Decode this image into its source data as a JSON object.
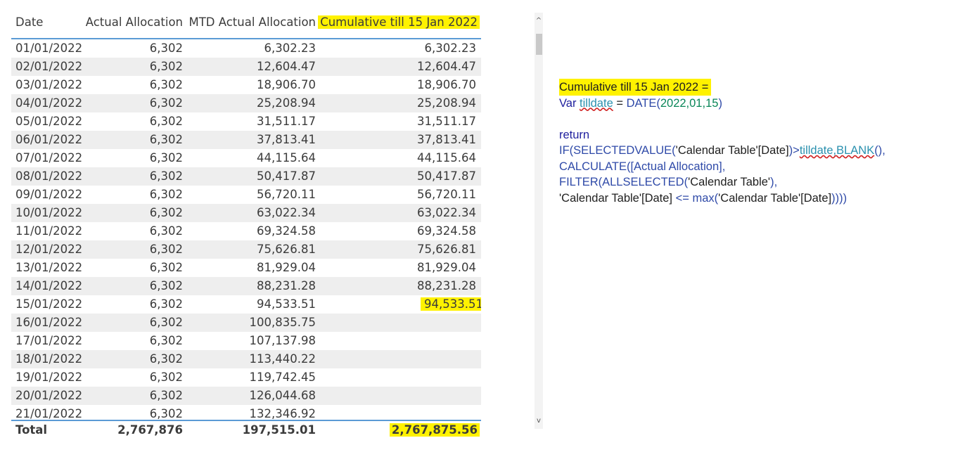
{
  "table": {
    "headers": {
      "date": "Date",
      "actual": "Actual Allocation",
      "mtd": "MTD Actual Allocation",
      "cumulative": "Cumulative till 15 Jan 2022"
    },
    "rows": [
      {
        "date": "01/01/2022",
        "actual": "6,302",
        "mtd": "6,302.23",
        "cumulative": "6,302.23"
      },
      {
        "date": "02/01/2022",
        "actual": "6,302",
        "mtd": "12,604.47",
        "cumulative": "12,604.47"
      },
      {
        "date": "03/01/2022",
        "actual": "6,302",
        "mtd": "18,906.70",
        "cumulative": "18,906.70"
      },
      {
        "date": "04/01/2022",
        "actual": "6,302",
        "mtd": "25,208.94",
        "cumulative": "25,208.94"
      },
      {
        "date": "05/01/2022",
        "actual": "6,302",
        "mtd": "31,511.17",
        "cumulative": "31,511.17"
      },
      {
        "date": "06/01/2022",
        "actual": "6,302",
        "mtd": "37,813.41",
        "cumulative": "37,813.41"
      },
      {
        "date": "07/01/2022",
        "actual": "6,302",
        "mtd": "44,115.64",
        "cumulative": "44,115.64"
      },
      {
        "date": "08/01/2022",
        "actual": "6,302",
        "mtd": "50,417.87",
        "cumulative": "50,417.87"
      },
      {
        "date": "09/01/2022",
        "actual": "6,302",
        "mtd": "56,720.11",
        "cumulative": "56,720.11"
      },
      {
        "date": "10/01/2022",
        "actual": "6,302",
        "mtd": "63,022.34",
        "cumulative": "63,022.34"
      },
      {
        "date": "11/01/2022",
        "actual": "6,302",
        "mtd": "69,324.58",
        "cumulative": "69,324.58"
      },
      {
        "date": "12/01/2022",
        "actual": "6,302",
        "mtd": "75,626.81",
        "cumulative": "75,626.81"
      },
      {
        "date": "13/01/2022",
        "actual": "6,302",
        "mtd": "81,929.04",
        "cumulative": "81,929.04"
      },
      {
        "date": "14/01/2022",
        "actual": "6,302",
        "mtd": "88,231.28",
        "cumulative": "88,231.28"
      },
      {
        "date": "15/01/2022",
        "actual": "6,302",
        "mtd": "94,533.51",
        "cumulative": "94,533.51",
        "highlight": true
      },
      {
        "date": "16/01/2022",
        "actual": "6,302",
        "mtd": "100,835.75",
        "cumulative": ""
      },
      {
        "date": "17/01/2022",
        "actual": "6,302",
        "mtd": "107,137.98",
        "cumulative": ""
      },
      {
        "date": "18/01/2022",
        "actual": "6,302",
        "mtd": "113,440.22",
        "cumulative": ""
      },
      {
        "date": "19/01/2022",
        "actual": "6,302",
        "mtd": "119,742.45",
        "cumulative": ""
      },
      {
        "date": "20/01/2022",
        "actual": "6,302",
        "mtd": "126,044.68",
        "cumulative": ""
      },
      {
        "date": "21/01/2022",
        "actual": "6,302",
        "mtd": "132,346.92",
        "cumulative": ""
      }
    ],
    "total": {
      "label": "Total",
      "actual": "2,767,876",
      "mtd": "197,515.01",
      "cumulative": "2,767,875.56"
    }
  },
  "scrollbar": {
    "up_icon": "chevron-up-icon",
    "down_icon": "chevron-down-icon",
    "up_glyph": "^",
    "down_glyph": "v"
  },
  "dax": {
    "measure_name": "Cumulative till 15 Jan 2022",
    "eq": " =",
    "line2_var": "Var ",
    "line2_name": "tilldate",
    "line2_eq": " = ",
    "line2_fn": "DATE(",
    "line2_args": "2022,01,15",
    "line2_close": ")",
    "line4": "return",
    "line5_if": "IF(",
    "line5_fn": "SELECTEDVALUE(",
    "line5_col": "'Calendar Table'[Date]",
    "line5_gt": ")>",
    "line5_var": "tilldate,BLANK",
    "line5_end": "(),",
    "line6_fn": "CALCULATE(",
    "line6_col": "[Actual Allocation]",
    "line6_end": ",",
    "line7_fn": "FILTER(ALLSELECTED(",
    "line7_tbl": "'Calendar Table'",
    "line7_end": "),",
    "line8_col": "'Calendar Table'[Date]",
    "line8_op": " <= ",
    "line8_fn": "max(",
    "line8_col2": "'Calendar Table'[Date]",
    "line8_end": "))))",
    "highlight_color": "#fff200"
  }
}
